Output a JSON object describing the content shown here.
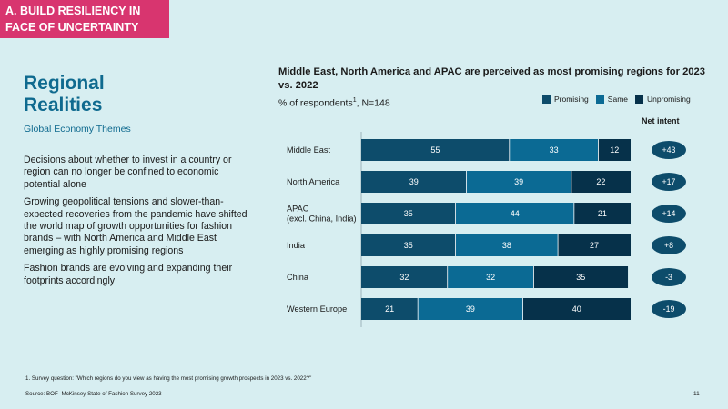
{
  "section_tag": "A. BUILD RESILIENCY IN FACE OF UNCERTAINTY",
  "page_title": "Regional Realities",
  "page_subtitle": "Global Economy Themes",
  "bullets": [
    "Decisions about whether to invest in a country or region can no longer be confined to economic potential alone",
    "Growing geopolitical tensions and slower-than-expected recoveries from the pandemic have shifted the world map of growth opportunities for fashion brands – with North America and Middle East emerging as highly promising regions",
    "Fashion brands are evolving and expanding their footprints accordingly"
  ],
  "respondents_text": "% of respondents",
  "respondents_sup": "1",
  "respondents_n": ", N=148",
  "net_intent_header": "Net intent",
  "footnote": "1.  Survey question: \"Which regions do you view as having the most promising growth prospects in 2023 vs. 2022?\"",
  "source": "Source: BOF- McKinsey State of Fashion Survey 2023",
  "page_number": "11",
  "colors": {
    "promising": "#0d4c6b",
    "same": "#0b6a94",
    "unpromising": "#06314a",
    "tag": "#d8356f",
    "background": "#d7eef1"
  },
  "chart_data": {
    "type": "bar",
    "orientation": "horizontal",
    "stacked": true,
    "title": "Middle East, North America and APAC are perceived as most promising regions for 2023 vs. 2022",
    "categories": [
      [
        "Middle East"
      ],
      [
        "North America"
      ],
      [
        "APAC",
        "(excl. China, India)"
      ],
      [
        "India"
      ],
      [
        "China"
      ],
      [
        "Western Europe"
      ]
    ],
    "series": [
      {
        "name": "Promising",
        "color": "#0d4c6b",
        "values": [
          55,
          39,
          35,
          35,
          32,
          21
        ]
      },
      {
        "name": "Same",
        "color": "#0b6a94",
        "values": [
          33,
          39,
          44,
          38,
          32,
          39
        ]
      },
      {
        "name": "Unpromising",
        "color": "#06314a",
        "values": [
          12,
          22,
          21,
          27,
          35,
          40
        ]
      }
    ],
    "net_intent": [
      "+43",
      "+17",
      "+14",
      "+8",
      "-3",
      "-19"
    ],
    "xlim": [
      0,
      100
    ],
    "legend_position": "top-right"
  }
}
